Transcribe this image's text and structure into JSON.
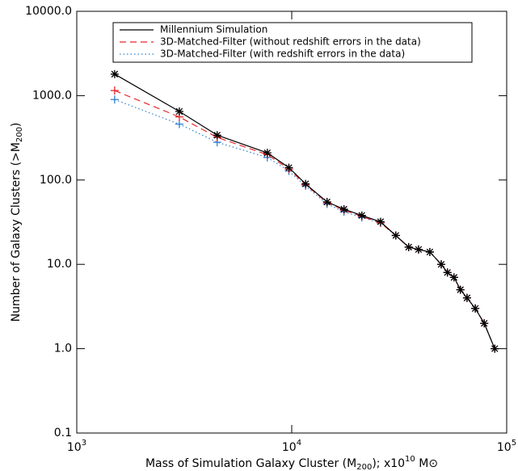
{
  "chart_data": {
    "type": "line",
    "xlabel": {
      "text": "Mass of Simulation Galaxy Cluster (M",
      "sub": "200",
      "mid": "); x10",
      "sup": "10",
      "end": " M⊙"
    },
    "ylabel": {
      "text": "Number of Galaxy Clusters (>M",
      "sub": "200",
      "end": ")"
    },
    "x": [
      1500,
      3000,
      4500,
      7700,
      9700,
      11600,
      14600,
      17500,
      21200,
      25900,
      30500,
      35000,
      38900,
      43900,
      49600,
      53000,
      56900,
      60900,
      65400,
      71400,
      78600,
      88000
    ],
    "series": [
      {
        "name": "Millennium Simulation",
        "color": "#000000",
        "dash": "solid",
        "marker": "asterisk",
        "values": [
          1800,
          650,
          340,
          210,
          140,
          90,
          55,
          45,
          38,
          32,
          22,
          16,
          15,
          14,
          10,
          8,
          7,
          5,
          4,
          3,
          2,
          1
        ]
      },
      {
        "name": "3D-Matched-Filter (without redshift errors in the data)",
        "color": "#e8262a",
        "dash": "dashed",
        "marker": "plus",
        "values": [
          1150,
          560,
          320,
          200,
          135,
          88,
          54,
          44,
          37,
          31,
          22,
          16,
          15,
          14,
          10,
          8,
          7,
          5,
          4,
          3,
          2,
          1
        ]
      },
      {
        "name": "3D-Matched-Filter (with redshift errors in the data)",
        "color": "#2f7fd0",
        "dash": "dotted",
        "marker": "plus",
        "values": [
          900,
          460,
          280,
          185,
          128,
          85,
          52,
          42,
          36,
          31,
          22,
          16,
          15,
          14,
          10,
          8,
          7,
          5,
          4,
          3,
          2,
          1
        ]
      }
    ],
    "xlim": [
      1000,
      100000
    ],
    "ylim": [
      0.1,
      10000
    ],
    "xticks": [
      {
        "value": 1000,
        "label": "10",
        "exponent": "3"
      },
      {
        "value": 10000,
        "label": "10",
        "exponent": "4"
      },
      {
        "value": 100000,
        "label": "10",
        "exponent": "5"
      }
    ],
    "yticks": [
      {
        "value": 0.1,
        "label": "0.1"
      },
      {
        "value": 1,
        "label": "1.0"
      },
      {
        "value": 10,
        "label": "10.0"
      },
      {
        "value": 100,
        "label": "100.0"
      },
      {
        "value": 1000,
        "label": "1000.0"
      },
      {
        "value": 10000,
        "label": "10000.0"
      }
    ],
    "xscale": "log",
    "yscale": "log",
    "legend": "upper left"
  }
}
